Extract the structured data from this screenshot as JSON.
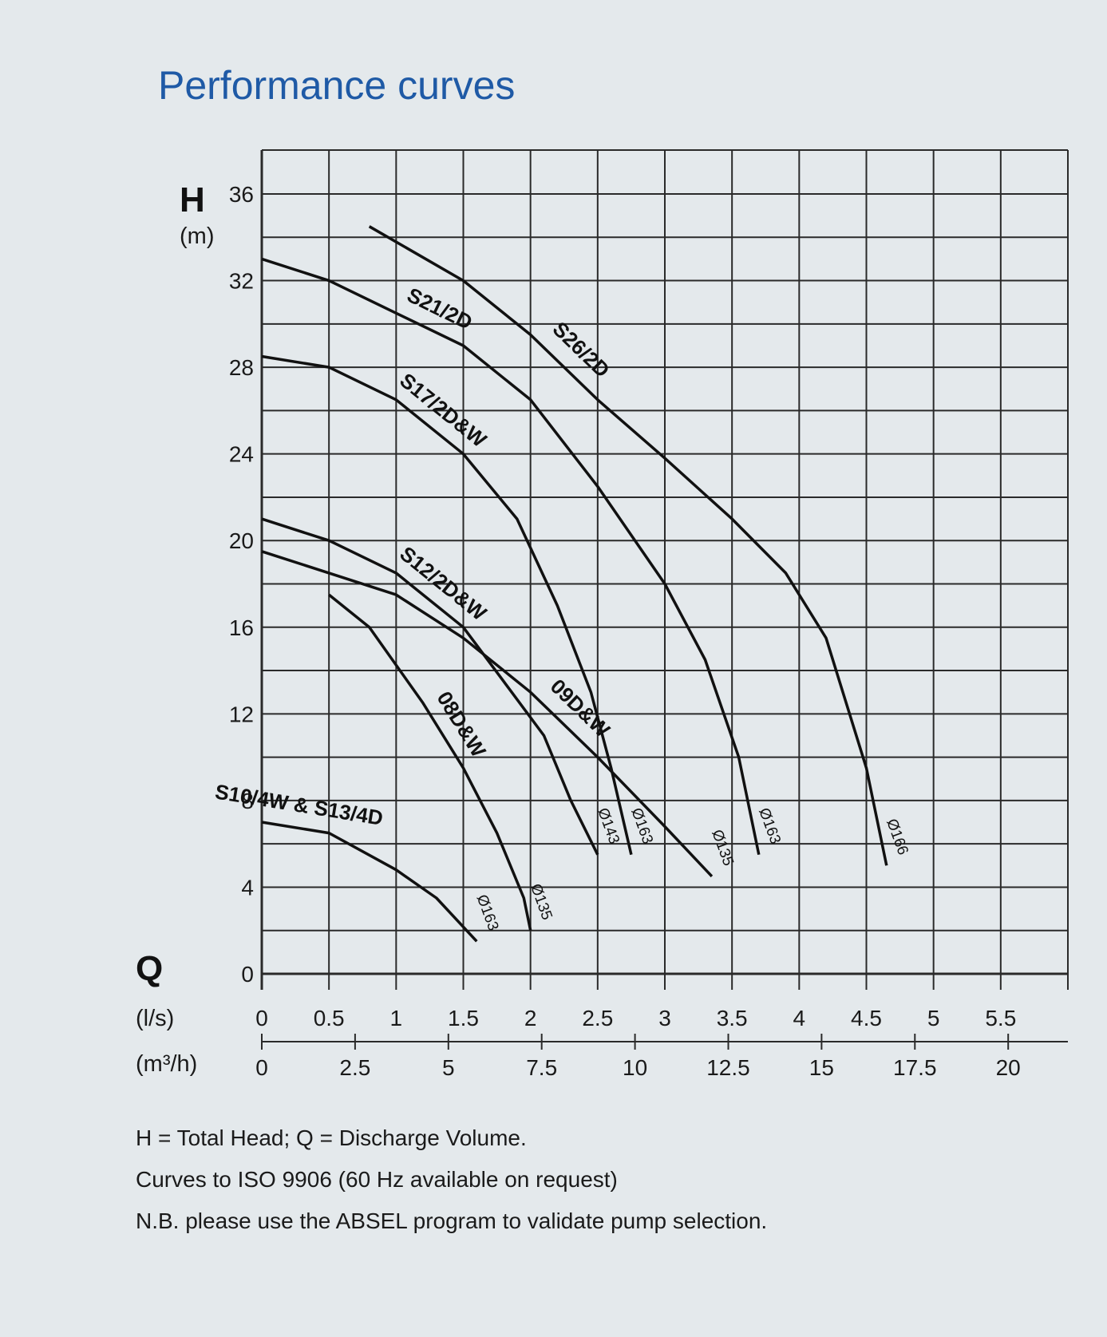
{
  "title": "Performance curves",
  "notes": [
    "H = Total Head; Q = Discharge Volume.",
    "Curves to ISO 9906 (60 Hz available on request)",
    "N.B. please use the ABSEL program to validate pump selection."
  ],
  "colors": {
    "title": "#1f5aa6",
    "background": "#e4e9ec",
    "grid": "#2a2a2a",
    "curve": "#111111"
  },
  "chart_data": {
    "type": "line",
    "title": "",
    "ylabel": "H",
    "yunit": "(m)",
    "xlabel": "Q",
    "xunit": "(l/s)",
    "x2unit": "(m³/h)",
    "xlim": [
      0,
      6
    ],
    "ylim": [
      0,
      36
    ],
    "y_ticks": [
      0,
      4,
      8,
      12,
      16,
      20,
      24,
      28,
      32,
      36
    ],
    "x_ticks": [
      0,
      0.5,
      1,
      1.5,
      2,
      2.5,
      3,
      3.5,
      4,
      4.5,
      5,
      5.5
    ],
    "x2_ticks": [
      0,
      2.5,
      5,
      7.5,
      10,
      12.5,
      15,
      17.5,
      20
    ],
    "grid": true,
    "series": [
      {
        "name": "S26/2D",
        "diameter": "Ø166",
        "x": [
          0.8,
          1.5,
          2.0,
          2.5,
          3.0,
          3.5,
          3.9,
          4.2,
          4.5,
          4.65
        ],
        "y": [
          34.5,
          32.0,
          29.5,
          26.5,
          23.8,
          21.0,
          18.5,
          15.5,
          9.5,
          5.0
        ]
      },
      {
        "name": "S21/2D",
        "diameter": "Ø163",
        "x": [
          0.0,
          0.5,
          1.0,
          1.5,
          2.0,
          2.5,
          3.0,
          3.3,
          3.55,
          3.7
        ],
        "y": [
          33.0,
          32.0,
          30.5,
          29.0,
          26.5,
          22.5,
          18.0,
          14.5,
          10.0,
          5.5
        ]
      },
      {
        "name": "S17/2D&W",
        "diameter": "Ø163",
        "x": [
          0.0,
          0.5,
          1.0,
          1.5,
          1.9,
          2.2,
          2.45,
          2.6,
          2.75
        ],
        "y": [
          28.5,
          28.0,
          26.5,
          24.0,
          21.0,
          17.0,
          13.0,
          9.5,
          5.5
        ]
      },
      {
        "name": "S12/2D&W",
        "diameter": "Ø143",
        "x": [
          0.0,
          0.5,
          1.0,
          1.5,
          1.8,
          2.1,
          2.3,
          2.5
        ],
        "y": [
          21.0,
          20.0,
          18.5,
          16.0,
          13.5,
          11.0,
          8.0,
          5.5
        ]
      },
      {
        "name": "09D&W",
        "diameter": "Ø135",
        "x": [
          0.0,
          0.5,
          1.0,
          1.5,
          2.0,
          2.5,
          3.0,
          3.35
        ],
        "y": [
          19.5,
          18.5,
          17.5,
          15.5,
          13.0,
          10.0,
          6.8,
          4.5
        ]
      },
      {
        "name": "08D&W",
        "diameter": "Ø135",
        "x": [
          0.5,
          0.8,
          1.2,
          1.5,
          1.75,
          1.95,
          2.0
        ],
        "y": [
          17.5,
          16.0,
          12.5,
          9.5,
          6.5,
          3.5,
          2.0
        ]
      },
      {
        "name": "S10/4W & S13/4D",
        "diameter": "Ø163",
        "x": [
          0.0,
          0.5,
          1.0,
          1.3,
          1.6
        ],
        "y": [
          7.0,
          6.5,
          4.8,
          3.5,
          1.5
        ]
      }
    ]
  }
}
